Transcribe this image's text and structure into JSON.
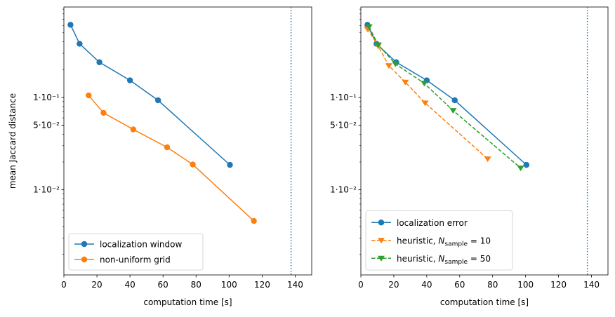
{
  "chart_data": [
    {
      "type": "line",
      "xlabel": "computation time [s]",
      "ylabel": "mean Jaccard distance",
      "xlim": [
        0,
        150
      ],
      "ylim": [
        0.0012,
        0.95
      ],
      "yscale": "log",
      "xticks": [
        0,
        20,
        40,
        60,
        80,
        100,
        120,
        140
      ],
      "yticks": [
        {
          "value": 0.1,
          "label": "1·10⁻¹"
        },
        {
          "value": 0.05,
          "label": "5·10⁻²"
        },
        {
          "value": 0.01,
          "label": "1·10⁻²"
        }
      ],
      "vline": {
        "x": 137.5,
        "color": "#1f77b4",
        "style": "dotted"
      },
      "legend": "lower-left",
      "series": [
        {
          "name": "localization window",
          "color": "#1f77b4",
          "marker": "circle",
          "dashed": false,
          "x": [
            4,
            9.5,
            21.5,
            40,
            57,
            100.5
          ],
          "y": [
            0.61,
            0.38,
            0.24,
            0.153,
            0.093,
            0.0186
          ]
        },
        {
          "name": "non-uniform grid",
          "color": "#ff7f0e",
          "marker": "circle",
          "dashed": false,
          "x": [
            15,
            24,
            42,
            62.5,
            78,
            115
          ],
          "y": [
            0.105,
            0.068,
            0.045,
            0.0288,
            0.0188,
            0.0046
          ]
        }
      ]
    },
    {
      "type": "line",
      "xlabel": "computation time [s]",
      "ylabel": "",
      "xlim": [
        0,
        150
      ],
      "ylim": [
        0.0012,
        0.95
      ],
      "yscale": "log",
      "xticks": [
        0,
        20,
        40,
        60,
        80,
        100,
        120,
        140
      ],
      "yticks": [
        {
          "value": 0.1,
          "label": "1·10⁻¹"
        },
        {
          "value": 0.05,
          "label": "5·10⁻²"
        },
        {
          "value": 0.01,
          "label": "1·10⁻²"
        }
      ],
      "vline": {
        "x": 137.5,
        "color": "#1f77b4",
        "style": "dotted"
      },
      "legend": "lower-left",
      "series": [
        {
          "name": "localization error",
          "color": "#1f77b4",
          "marker": "circle",
          "dashed": false,
          "x": [
            4,
            9.5,
            21.5,
            40,
            57,
            100.5
          ],
          "y": [
            0.61,
            0.38,
            0.24,
            0.153,
            0.093,
            0.0186
          ]
        },
        {
          "name": "heuristic, N_sample = 10",
          "legend_main": "heuristic, ",
          "legend_sub": "sample",
          "legend_tail": " = 10",
          "color": "#ff7f0e",
          "marker": "triangle-down",
          "dashed": true,
          "x": [
            4,
            10.5,
            17,
            27,
            39,
            77
          ],
          "y": [
            0.55,
            0.36,
            0.22,
            0.146,
            0.087,
            0.0216
          ]
        },
        {
          "name": "heuristic, N_sample = 50",
          "legend_main": "heuristic, ",
          "legend_sub": "sample",
          "legend_tail": " = 50",
          "color": "#2ca02c",
          "marker": "triangle-down",
          "dashed": true,
          "x": [
            5,
            10.5,
            21,
            38.5,
            56,
            97
          ],
          "y": [
            0.58,
            0.37,
            0.23,
            0.142,
            0.072,
            0.0172
          ]
        }
      ]
    }
  ]
}
